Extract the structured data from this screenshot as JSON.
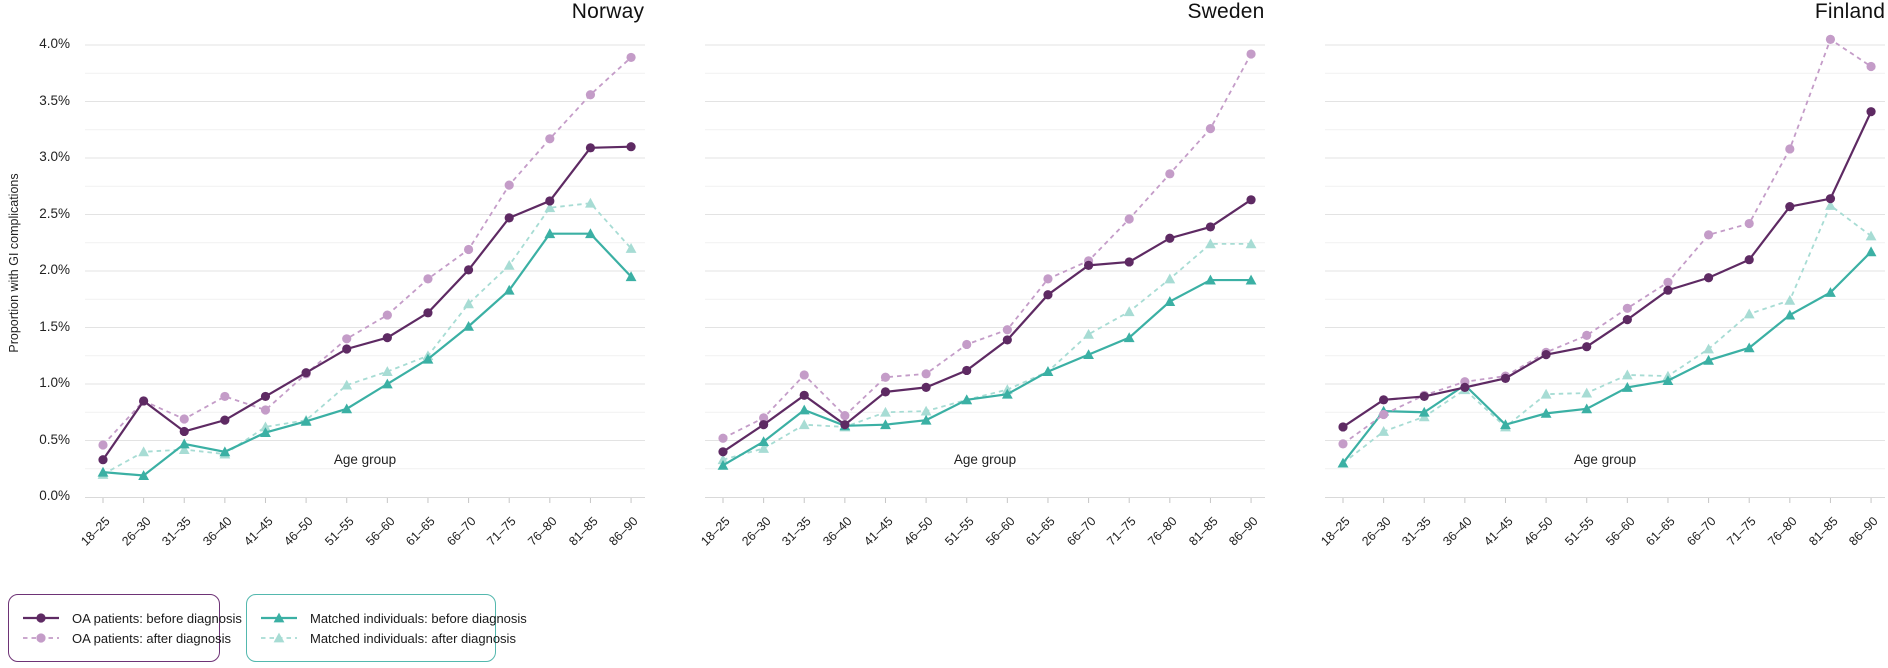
{
  "y_axis": {
    "title": "Proportion with GI complications",
    "tick_labels": [
      "0.0%",
      "0.5%",
      "1.0%",
      "1.5%",
      "2.0%",
      "2.5%",
      "3.0%",
      "3.5%",
      "4.0%"
    ],
    "min": 0,
    "max": 4.0,
    "major_step": 0.5,
    "minor_step": 0.25,
    "unit": "%"
  },
  "x_axis": {
    "title": "Age group"
  },
  "series_styles": {
    "oa_before": {
      "color": "#5e2a63",
      "dashed": false,
      "marker": "circle"
    },
    "oa_after": {
      "color": "#c49cc8",
      "dashed": true,
      "marker": "circle"
    },
    "matched_before": {
      "color": "#3bb0a4",
      "dashed": false,
      "marker": "triangle"
    },
    "matched_after": {
      "color": "#a7dcd4",
      "dashed": true,
      "marker": "triangle"
    }
  },
  "legend": {
    "boxes": [
      {
        "border_color": "#6e3376",
        "items": [
          {
            "series": "oa_before",
            "label": "OA patients: before diagnosis"
          },
          {
            "series": "oa_after",
            "label": "OA patients: after diagnosis"
          }
        ]
      },
      {
        "border_color": "#53b8ae",
        "items": [
          {
            "series": "matched_before",
            "label": "Matched individuals: before diagnosis"
          },
          {
            "series": "matched_after",
            "label": "Matched individuals: after diagnosis"
          }
        ]
      }
    ]
  },
  "chart_data": [
    {
      "type": "line",
      "title": "Norway",
      "categories": [
        "18–25",
        "26–30",
        "31–35",
        "36–40",
        "41–45",
        "46–50",
        "51–55",
        "56–60",
        "61–65",
        "66–70",
        "71–75",
        "76–80",
        "81–85",
        "86–90"
      ],
      "ylim": [
        0,
        4.1
      ],
      "grid": true,
      "series": [
        {
          "key": "oa_before",
          "name": "OA patients: before diagnosis",
          "values": [
            0.33,
            0.85,
            0.58,
            0.68,
            0.89,
            1.1,
            1.31,
            1.41,
            1.63,
            2.01,
            2.47,
            2.62,
            3.09,
            3.1
          ]
        },
        {
          "key": "oa_after",
          "name": "OA patients: after diagnosis",
          "values": [
            0.46,
            0.85,
            0.69,
            0.89,
            0.77,
            1.09,
            1.4,
            1.61,
            1.93,
            2.19,
            2.76,
            3.17,
            3.56,
            3.89
          ]
        },
        {
          "key": "matched_before",
          "name": "Matched individuals: before diagnosis",
          "values": [
            0.22,
            0.19,
            0.47,
            0.4,
            0.57,
            0.67,
            0.78,
            1.0,
            1.22,
            1.51,
            1.83,
            2.33,
            2.33,
            1.95
          ]
        },
        {
          "key": "matched_after",
          "name": "Matched individuals: after diagnosis",
          "values": [
            0.2,
            0.4,
            0.42,
            0.38,
            0.62,
            0.68,
            0.99,
            1.11,
            1.25,
            1.71,
            2.05,
            2.56,
            2.6,
            2.2
          ]
        }
      ]
    },
    {
      "type": "line",
      "title": "Sweden",
      "categories": [
        "18–25",
        "26–30",
        "31–35",
        "36–40",
        "41–45",
        "46–50",
        "51–55",
        "56–60",
        "61–65",
        "66–70",
        "71–75",
        "76–80",
        "81–85",
        "86–90"
      ],
      "ylim": [
        0,
        4.1
      ],
      "grid": true,
      "series": [
        {
          "key": "oa_before",
          "name": "OA patients: before diagnosis",
          "values": [
            0.4,
            0.64,
            0.9,
            0.64,
            0.93,
            0.97,
            1.12,
            1.39,
            1.79,
            2.05,
            2.08,
            2.29,
            2.39,
            2.63
          ]
        },
        {
          "key": "oa_after",
          "name": "OA patients: after diagnosis",
          "values": [
            0.52,
            0.7,
            1.08,
            0.72,
            1.06,
            1.09,
            1.35,
            1.48,
            1.93,
            2.09,
            2.46,
            2.86,
            3.26,
            3.92
          ]
        },
        {
          "key": "matched_before",
          "name": "Matched individuals: before diagnosis",
          "values": [
            0.28,
            0.49,
            0.77,
            0.63,
            0.64,
            0.68,
            0.86,
            0.91,
            1.11,
            1.26,
            1.41,
            1.73,
            1.92,
            1.92
          ]
        },
        {
          "key": "matched_after",
          "name": "Matched individuals: after diagnosis",
          "values": [
            0.33,
            0.43,
            0.64,
            0.62,
            0.75,
            0.76,
            0.86,
            0.95,
            1.11,
            1.44,
            1.64,
            1.93,
            2.24,
            2.24
          ]
        }
      ]
    },
    {
      "type": "line",
      "title": "Finland",
      "categories": [
        "18–25",
        "26–30",
        "31–35",
        "36–40",
        "41–45",
        "46–50",
        "51–55",
        "56–60",
        "61–65",
        "66–70",
        "71–75",
        "76–80",
        "81–85",
        "86–90"
      ],
      "ylim": [
        0,
        4.1
      ],
      "grid": true,
      "series": [
        {
          "key": "oa_before",
          "name": "OA patients: before diagnosis",
          "values": [
            0.62,
            0.86,
            0.89,
            0.97,
            1.05,
            1.26,
            1.33,
            1.57,
            1.83,
            1.94,
            2.1,
            2.57,
            2.64,
            3.41
          ]
        },
        {
          "key": "oa_after",
          "name": "OA patients: after diagnosis",
          "values": [
            0.47,
            0.73,
            0.9,
            1.02,
            1.07,
            1.28,
            1.43,
            1.67,
            1.9,
            2.32,
            2.42,
            3.08,
            4.05,
            3.81
          ]
        },
        {
          "key": "matched_before",
          "name": "Matched individuals: before diagnosis",
          "values": [
            0.3,
            0.76,
            0.75,
            0.99,
            0.64,
            0.74,
            0.78,
            0.97,
            1.03,
            1.21,
            1.32,
            1.61,
            1.81,
            2.17
          ]
        },
        {
          "key": "matched_after",
          "name": "Matched individuals: after diagnosis",
          "values": [
            0.3,
            0.58,
            0.71,
            0.95,
            0.62,
            0.91,
            0.92,
            1.08,
            1.07,
            1.31,
            1.62,
            1.74,
            2.58,
            2.31
          ]
        }
      ]
    }
  ]
}
